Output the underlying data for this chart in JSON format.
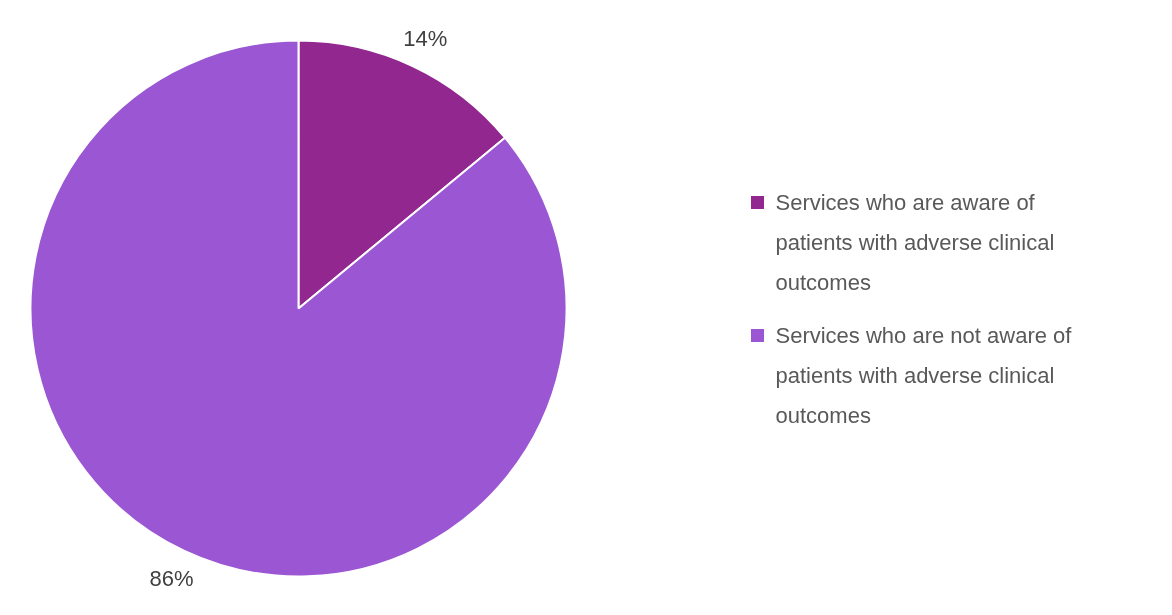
{
  "chart_data": {
    "type": "pie",
    "categories": [
      "Services who are aware of patients with adverse clinical outcomes",
      "Services who are not aware of patients with adverse clinical outcomes"
    ],
    "values": [
      14,
      86
    ],
    "colors": [
      "#92278f",
      "#9b57d3"
    ],
    "value_labels": [
      "14%",
      "86%"
    ],
    "legend": "right"
  }
}
